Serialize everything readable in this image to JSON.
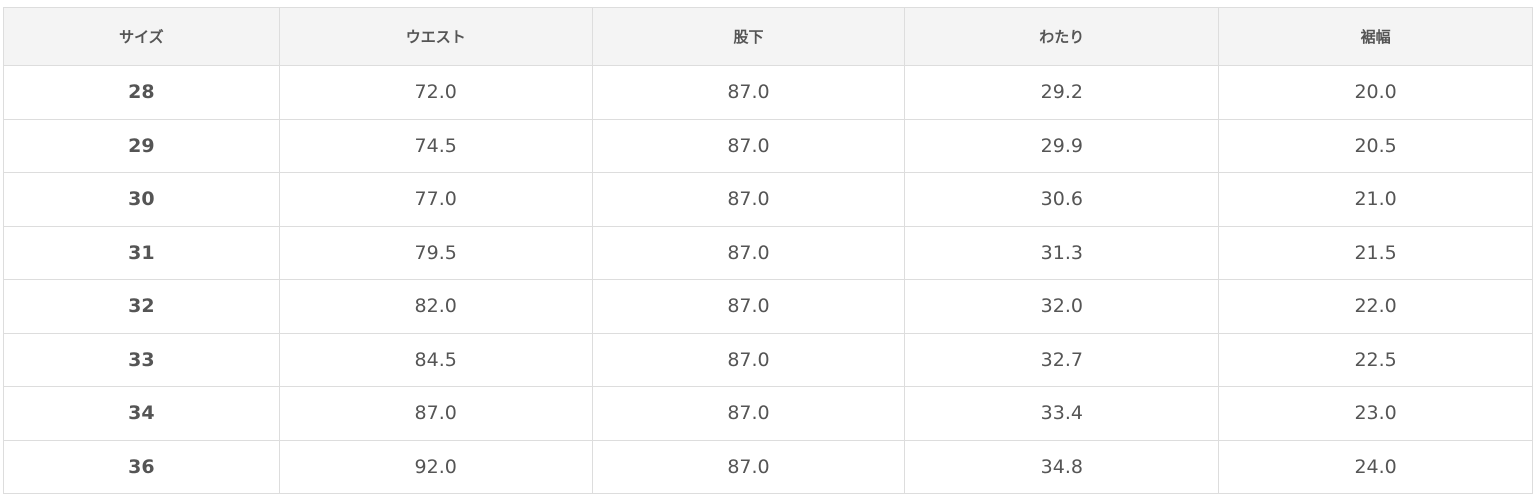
{
  "table": {
    "headers": [
      "サイズ",
      "ウエスト",
      "股下",
      "わたり",
      "裾幅"
    ],
    "rows": [
      [
        "28",
        "72.0",
        "87.0",
        "29.2",
        "20.0"
      ],
      [
        "29",
        "74.5",
        "87.0",
        "29.9",
        "20.5"
      ],
      [
        "30",
        "77.0",
        "87.0",
        "30.6",
        "21.0"
      ],
      [
        "31",
        "79.5",
        "87.0",
        "31.3",
        "21.5"
      ],
      [
        "32",
        "82.0",
        "87.0",
        "32.0",
        "22.0"
      ],
      [
        "33",
        "84.5",
        "87.0",
        "32.7",
        "22.5"
      ],
      [
        "34",
        "87.0",
        "87.0",
        "33.4",
        "23.0"
      ],
      [
        "36",
        "92.0",
        "87.0",
        "34.8",
        "24.0"
      ]
    ]
  }
}
